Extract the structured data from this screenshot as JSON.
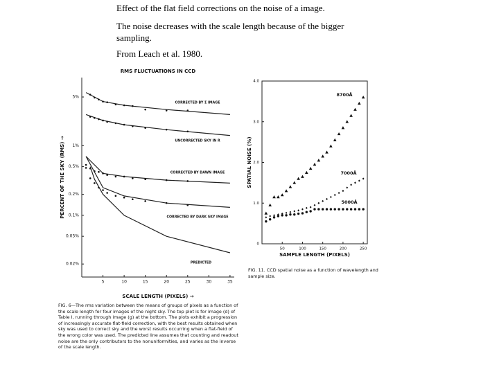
{
  "slide": {
    "lines": [
      "Effect of the flat field corrections on the noise of a  image.",
      "The noise decreases with the scale length because of the bigger sampling.",
      "From Leach et al. 1980."
    ]
  },
  "chart_data": [
    {
      "type": "scatter",
      "title": "RMS FLUCTUATIONS IN CCD",
      "xlabel": "SCALE LENGTH (PIXELS) →",
      "ylabel": "PERCENT OF THE SKY (RMS) →",
      "log_y": true,
      "xlim": [
        0,
        36
      ],
      "ylim": [
        0.013,
        9.5
      ],
      "xticks": [
        5,
        10,
        15,
        20,
        25,
        30,
        35
      ],
      "yticks": [
        {
          "value": 5,
          "label": "5%"
        },
        {
          "value": 1,
          "label": "1%"
        },
        {
          "value": 0.5,
          "label": "0.5%"
        },
        {
          "value": 0.2,
          "label": "0.2%"
        },
        {
          "value": 0.1,
          "label": "0.1%"
        },
        {
          "value": 0.05,
          "label": "0.05%"
        },
        {
          "value": 0.02,
          "label": "0.02%"
        }
      ],
      "series": [
        {
          "name": "CORRECTED BY Σ IMAGE",
          "marker": "dot",
          "x": [
            2,
            3,
            4,
            5,
            6,
            8,
            10,
            12,
            15,
            20,
            25
          ],
          "values": [
            5.4,
            4.9,
            4.6,
            4.3,
            4.2,
            3.9,
            3.8,
            3.7,
            3.3,
            3.2,
            3.2
          ],
          "fit_x": [
            1,
            5,
            10,
            20,
            35
          ],
          "fit": [
            5.8,
            4.3,
            3.8,
            3.3,
            2.8
          ]
        },
        {
          "name": "UNCORRECTED SKY IN R",
          "marker": "dot",
          "x": [
            2,
            3,
            4,
            5,
            6,
            8,
            10,
            12,
            15,
            20,
            25
          ],
          "values": [
            2.6,
            2.5,
            2.4,
            2.3,
            2.2,
            2.1,
            2.0,
            1.9,
            1.8,
            1.7,
            1.6
          ],
          "fit_x": [
            1,
            5,
            10,
            20,
            35
          ],
          "fit": [
            2.8,
            2.3,
            2.0,
            1.7,
            1.4
          ]
        },
        {
          "name": "CORRECTED BY DAWN IMAGE",
          "marker": "dot",
          "x": [
            1,
            2,
            3,
            4,
            5,
            6,
            8,
            10,
            12,
            15,
            20,
            25
          ],
          "values": [
            0.53,
            0.47,
            0.43,
            0.42,
            0.4,
            0.38,
            0.36,
            0.36,
            0.34,
            0.33,
            0.32,
            0.31
          ],
          "fit_x": [
            1,
            5,
            10,
            20,
            35
          ],
          "fit": [
            0.7,
            0.4,
            0.36,
            0.32,
            0.29
          ]
        },
        {
          "name": "CORRECTED BY DARK SKY IMAGE",
          "marker": "dot",
          "x": [
            1,
            2,
            3,
            4,
            5,
            6,
            8,
            10,
            12,
            15,
            20,
            25
          ],
          "values": [
            0.48,
            0.34,
            0.29,
            0.25,
            0.23,
            0.21,
            0.19,
            0.18,
            0.17,
            0.16,
            0.15,
            0.14
          ],
          "fit_x": [
            1,
            5,
            10,
            20,
            35
          ],
          "fit": [
            0.7,
            0.25,
            0.19,
            0.15,
            0.13
          ]
        },
        {
          "name": "PREDICTED",
          "fit_x": [
            2,
            3,
            5,
            10,
            20,
            35
          ],
          "fit": [
            0.5,
            0.33,
            0.2,
            0.1,
            0.05,
            0.029
          ]
        }
      ],
      "caption": "FIG. 6—The rms variation between the means of groups of pixels as a function of the scale length for four images of the night sky. The top plot is for image (d) of Table I, running through image (g) at the bottom. The plots exhibit a progression of increasingly accurate flat-field correction, with the best results obtained when sky was used to correct sky and the worst results occurring when a flat-field of the wrong color was used. The predicted line assumes that counting and readout noise are the only contributors to the nonuniformities, and varies as the inverse of the scale length."
    },
    {
      "type": "scatter",
      "xlabel": "SAMPLE LENGTH (PIXELS)",
      "ylabel": "SPATIAL NOISE (%)",
      "xlim": [
        0,
        260
      ],
      "ylim": [
        0,
        4
      ],
      "xticks": [
        50,
        100,
        150,
        200,
        250
      ],
      "yticks": [
        0,
        {
          "value": 1,
          "label": "1.0"
        },
        {
          "value": 2,
          "label": "2.0"
        },
        {
          "value": 3,
          "label": "3.0"
        },
        {
          "value": 4,
          "label": "4.0"
        }
      ],
      "series": [
        {
          "name": "8700Å",
          "marker": "triangle",
          "x": [
            10,
            20,
            30,
            40,
            50,
            60,
            70,
            80,
            90,
            100,
            110,
            120,
            130,
            140,
            150,
            160,
            170,
            180,
            190,
            200,
            210,
            220,
            230,
            240,
            250
          ],
          "values": [
            0.75,
            0.95,
            1.15,
            1.15,
            1.2,
            1.3,
            1.4,
            1.5,
            1.6,
            1.65,
            1.75,
            1.85,
            1.95,
            2.05,
            2.15,
            2.25,
            2.4,
            2.55,
            2.7,
            2.85,
            3.0,
            3.15,
            3.3,
            3.45,
            3.6
          ]
        },
        {
          "name": "7000Å",
          "marker": "diamond",
          "x": [
            10,
            20,
            30,
            40,
            50,
            60,
            70,
            80,
            90,
            100,
            110,
            120,
            130,
            140,
            150,
            160,
            170,
            180,
            190,
            200,
            210,
            220,
            230,
            240,
            250
          ],
          "values": [
            0.65,
            0.68,
            0.7,
            0.72,
            0.74,
            0.76,
            0.78,
            0.8,
            0.82,
            0.85,
            0.88,
            0.9,
            0.95,
            1.0,
            1.05,
            1.1,
            1.15,
            1.2,
            1.25,
            1.3,
            1.38,
            1.45,
            1.5,
            1.55,
            1.6
          ]
        },
        {
          "name": "5000Å",
          "marker": "circle",
          "x": [
            10,
            20,
            30,
            40,
            50,
            60,
            70,
            80,
            90,
            100,
            110,
            120,
            130,
            140,
            150,
            160,
            170,
            180,
            190,
            200,
            210,
            220,
            230,
            240,
            250
          ],
          "values": [
            0.55,
            0.6,
            0.65,
            0.68,
            0.7,
            0.7,
            0.72,
            0.72,
            0.74,
            0.75,
            0.78,
            0.8,
            0.85,
            0.85,
            0.85,
            0.85,
            0.85,
            0.85,
            0.85,
            0.85,
            0.85,
            0.85,
            0.85,
            0.85,
            0.85
          ]
        }
      ],
      "caption": "FIG. 11. CCD spatial noise as a function of wavelength and sample size."
    }
  ]
}
